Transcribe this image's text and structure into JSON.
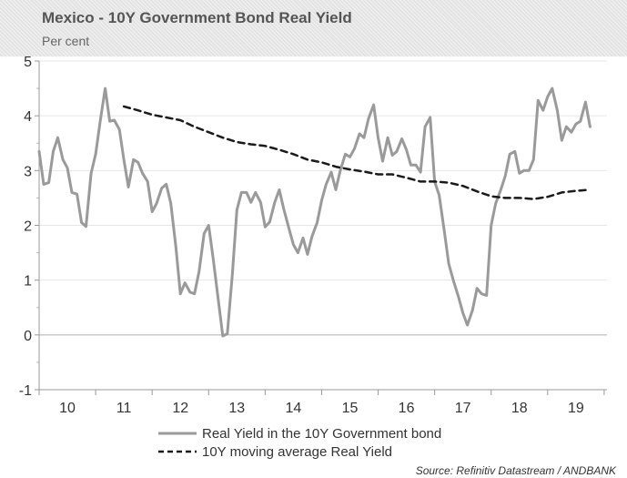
{
  "header": {
    "title": "Mexico - 10Y Government Bond Real Yield",
    "subtitle": "Per cent"
  },
  "chart_data": {
    "type": "line",
    "title": "Mexico - 10Y Government Bond Real Yield",
    "subtitle": "Per cent",
    "xlabel": "",
    "ylabel": "",
    "xlim": [
      2009.5,
      2019.55
    ],
    "ylim": [
      -1,
      5
    ],
    "y_ticks": [
      -1,
      0,
      1,
      2,
      3,
      4,
      5
    ],
    "x_ticks": [
      {
        "value": 2010,
        "label": "10"
      },
      {
        "value": 2011,
        "label": "11"
      },
      {
        "value": 2012,
        "label": "12"
      },
      {
        "value": 2013,
        "label": "13"
      },
      {
        "value": 2014,
        "label": "14"
      },
      {
        "value": 2015,
        "label": "15"
      },
      {
        "value": 2016,
        "label": "16"
      },
      {
        "value": 2017,
        "label": "17"
      },
      {
        "value": 2018,
        "label": "18"
      },
      {
        "value": 2019,
        "label": "19"
      }
    ],
    "grid": "horizontal",
    "legend_position": "bottom",
    "series": [
      {
        "name": "Real Yield in the 10Y Government bond",
        "color": "#9a9a9a",
        "style": "solid",
        "points": [
          [
            2009.5,
            3.35
          ],
          [
            2009.58,
            2.75
          ],
          [
            2009.67,
            2.78
          ],
          [
            2009.75,
            3.35
          ],
          [
            2009.83,
            3.6
          ],
          [
            2009.92,
            3.2
          ],
          [
            2010.0,
            3.05
          ],
          [
            2010.08,
            2.6
          ],
          [
            2010.17,
            2.57
          ],
          [
            2010.25,
            2.05
          ],
          [
            2010.33,
            1.98
          ],
          [
            2010.42,
            2.95
          ],
          [
            2010.5,
            3.3
          ],
          [
            2010.58,
            3.9
          ],
          [
            2010.67,
            4.5
          ],
          [
            2010.75,
            3.9
          ],
          [
            2010.83,
            3.92
          ],
          [
            2010.92,
            3.75
          ],
          [
            2011.0,
            3.2
          ],
          [
            2011.08,
            2.7
          ],
          [
            2011.17,
            3.2
          ],
          [
            2011.25,
            3.15
          ],
          [
            2011.33,
            2.95
          ],
          [
            2011.42,
            2.8
          ],
          [
            2011.5,
            2.25
          ],
          [
            2011.58,
            2.4
          ],
          [
            2011.67,
            2.68
          ],
          [
            2011.75,
            2.75
          ],
          [
            2011.83,
            2.4
          ],
          [
            2011.92,
            1.6
          ],
          [
            2012.0,
            0.75
          ],
          [
            2012.08,
            0.95
          ],
          [
            2012.17,
            0.78
          ],
          [
            2012.25,
            0.75
          ],
          [
            2012.33,
            1.15
          ],
          [
            2012.42,
            1.85
          ],
          [
            2012.5,
            2.0
          ],
          [
            2012.58,
            1.4
          ],
          [
            2012.67,
            0.65
          ],
          [
            2012.75,
            -0.02
          ],
          [
            2012.83,
            0.02
          ],
          [
            2012.92,
            1.1
          ],
          [
            2013.0,
            2.28
          ],
          [
            2013.08,
            2.6
          ],
          [
            2013.17,
            2.6
          ],
          [
            2013.25,
            2.42
          ],
          [
            2013.33,
            2.6
          ],
          [
            2013.42,
            2.42
          ],
          [
            2013.5,
            1.97
          ],
          [
            2013.58,
            2.06
          ],
          [
            2013.67,
            2.42
          ],
          [
            2013.75,
            2.65
          ],
          [
            2013.83,
            2.3
          ],
          [
            2013.92,
            1.95
          ],
          [
            2014.0,
            1.65
          ],
          [
            2014.08,
            1.5
          ],
          [
            2014.17,
            1.77
          ],
          [
            2014.25,
            1.47
          ],
          [
            2014.33,
            1.8
          ],
          [
            2014.42,
            2.05
          ],
          [
            2014.5,
            2.45
          ],
          [
            2014.58,
            2.75
          ],
          [
            2014.67,
            2.97
          ],
          [
            2014.75,
            2.65
          ],
          [
            2014.83,
            3.0
          ],
          [
            2014.92,
            3.3
          ],
          [
            2015.0,
            3.25
          ],
          [
            2015.08,
            3.4
          ],
          [
            2015.17,
            3.67
          ],
          [
            2015.25,
            3.6
          ],
          [
            2015.33,
            3.95
          ],
          [
            2015.42,
            4.2
          ],
          [
            2015.5,
            3.6
          ],
          [
            2015.58,
            3.17
          ],
          [
            2015.67,
            3.6
          ],
          [
            2015.75,
            3.28
          ],
          [
            2015.83,
            3.35
          ],
          [
            2015.92,
            3.58
          ],
          [
            2016.0,
            3.38
          ],
          [
            2016.08,
            3.1
          ],
          [
            2016.17,
            3.1
          ],
          [
            2016.25,
            2.97
          ],
          [
            2016.33,
            3.8
          ],
          [
            2016.42,
            3.97
          ],
          [
            2016.5,
            2.8
          ],
          [
            2016.58,
            2.55
          ],
          [
            2016.67,
            1.9
          ],
          [
            2016.75,
            1.3
          ],
          [
            2016.83,
            1.0
          ],
          [
            2016.92,
            0.7
          ],
          [
            2017.0,
            0.4
          ],
          [
            2017.08,
            0.18
          ],
          [
            2017.17,
            0.45
          ],
          [
            2017.25,
            0.85
          ],
          [
            2017.33,
            0.75
          ],
          [
            2017.42,
            0.72
          ],
          [
            2017.5,
            2.0
          ],
          [
            2017.58,
            2.4
          ],
          [
            2017.67,
            2.65
          ],
          [
            2017.75,
            2.9
          ],
          [
            2017.83,
            3.3
          ],
          [
            2017.92,
            3.35
          ],
          [
            2018.0,
            2.95
          ],
          [
            2018.08,
            3.0
          ],
          [
            2018.17,
            3.0
          ],
          [
            2018.25,
            3.2
          ],
          [
            2018.33,
            4.28
          ],
          [
            2018.42,
            4.1
          ],
          [
            2018.5,
            4.35
          ],
          [
            2018.58,
            4.5
          ],
          [
            2018.67,
            4.1
          ],
          [
            2018.75,
            3.55
          ],
          [
            2018.83,
            3.8
          ],
          [
            2018.92,
            3.7
          ],
          [
            2019.0,
            3.85
          ],
          [
            2019.08,
            3.9
          ],
          [
            2019.17,
            4.25
          ],
          [
            2019.25,
            3.8
          ]
        ]
      },
      {
        "name": "10Y moving average Real Yield",
        "color": "#1a1a1a",
        "style": "dashed",
        "points": [
          [
            2011.0,
            4.17
          ],
          [
            2011.25,
            4.1
          ],
          [
            2011.5,
            4.02
          ],
          [
            2011.75,
            3.97
          ],
          [
            2012.0,
            3.92
          ],
          [
            2012.25,
            3.8
          ],
          [
            2012.5,
            3.7
          ],
          [
            2012.75,
            3.6
          ],
          [
            2013.0,
            3.52
          ],
          [
            2013.25,
            3.48
          ],
          [
            2013.5,
            3.45
          ],
          [
            2013.75,
            3.38
          ],
          [
            2014.0,
            3.3
          ],
          [
            2014.25,
            3.2
          ],
          [
            2014.5,
            3.15
          ],
          [
            2014.75,
            3.07
          ],
          [
            2015.0,
            3.02
          ],
          [
            2015.25,
            2.98
          ],
          [
            2015.5,
            2.93
          ],
          [
            2015.75,
            2.93
          ],
          [
            2016.0,
            2.87
          ],
          [
            2016.25,
            2.8
          ],
          [
            2016.5,
            2.8
          ],
          [
            2016.75,
            2.78
          ],
          [
            2017.0,
            2.72
          ],
          [
            2017.25,
            2.62
          ],
          [
            2017.5,
            2.53
          ],
          [
            2017.75,
            2.5
          ],
          [
            2018.0,
            2.5
          ],
          [
            2018.25,
            2.48
          ],
          [
            2018.5,
            2.52
          ],
          [
            2018.75,
            2.6
          ],
          [
            2019.0,
            2.63
          ],
          [
            2019.25,
            2.65
          ]
        ]
      }
    ]
  },
  "legend": {
    "items": [
      {
        "label": "Real Yield in the 10Y Government bond",
        "color": "#9a9a9a",
        "style": "solid"
      },
      {
        "label": "10Y moving average Real Yield",
        "color": "#1a1a1a",
        "style": "dashed"
      }
    ]
  },
  "source": "Source: Refinitiv Datastream / ANDBANK"
}
